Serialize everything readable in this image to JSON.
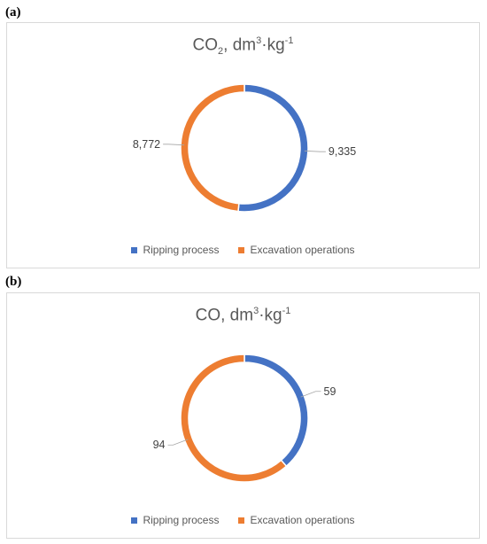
{
  "panels": [
    {
      "label": "(a)",
      "title_main": "CO",
      "title_sub": "2",
      "title_rest": ", dm",
      "title_sup": "3",
      "title_mid": "·kg",
      "title_sup2": "-1",
      "legend": [
        "Ripping process",
        "Excavation operations"
      ],
      "data_labels": [
        "9,335",
        "8,772"
      ]
    },
    {
      "label": "(b)",
      "title_main": "CO",
      "title_sub": "",
      "title_rest": ", dm",
      "title_sup": "3",
      "title_mid": "·kg",
      "title_sup2": "-1",
      "legend": [
        "Ripping process",
        "Excavation operations"
      ],
      "data_labels": [
        "59",
        "94"
      ]
    }
  ],
  "colors": {
    "ripping": "#4472c4",
    "excavation": "#ed7d31"
  },
  "chart_data": [
    {
      "type": "pie",
      "title": "CO2, dm3·kg-1",
      "categories": [
        "Ripping process",
        "Excavation operations"
      ],
      "values": [
        9335,
        8772
      ],
      "legend_position": "bottom"
    },
    {
      "type": "pie",
      "title": "CO, dm3·kg-1",
      "categories": [
        "Ripping process",
        "Excavation operations"
      ],
      "values": [
        59,
        94
      ],
      "legend_position": "bottom"
    }
  ]
}
